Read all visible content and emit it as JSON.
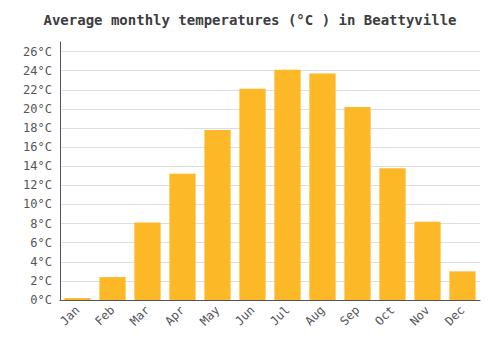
{
  "chart_data": {
    "type": "bar",
    "title": "Average monthly temperatures (°C ) in Beattyville",
    "categories": [
      "Jan",
      "Feb",
      "Mar",
      "Apr",
      "May",
      "Jun",
      "Jul",
      "Aug",
      "Sep",
      "Oct",
      "Nov",
      "Dec"
    ],
    "values": [
      0.2,
      2.4,
      8.1,
      13.2,
      17.8,
      22.1,
      24.1,
      23.7,
      20.2,
      13.8,
      8.2,
      3.0
    ],
    "color": "#FDB827",
    "ylim": [
      0,
      27
    ],
    "yticks": [
      {
        "value": 0,
        "label": "0°C"
      },
      {
        "value": 2,
        "label": "2°C"
      },
      {
        "value": 4,
        "label": "4°C"
      },
      {
        "value": 6,
        "label": "6°C"
      },
      {
        "value": 8,
        "label": "8°C"
      },
      {
        "value": 10,
        "label": "10°C"
      },
      {
        "value": 12,
        "label": "12°C"
      },
      {
        "value": 14,
        "label": "14°C"
      },
      {
        "value": 16,
        "label": "16°C"
      },
      {
        "value": 18,
        "label": "18°C"
      },
      {
        "value": 20,
        "label": "20°C"
      },
      {
        "value": 22,
        "label": "22°C"
      },
      {
        "value": 24,
        "label": "24°C"
      },
      {
        "value": 26,
        "label": "26°C"
      }
    ],
    "grid": true
  }
}
